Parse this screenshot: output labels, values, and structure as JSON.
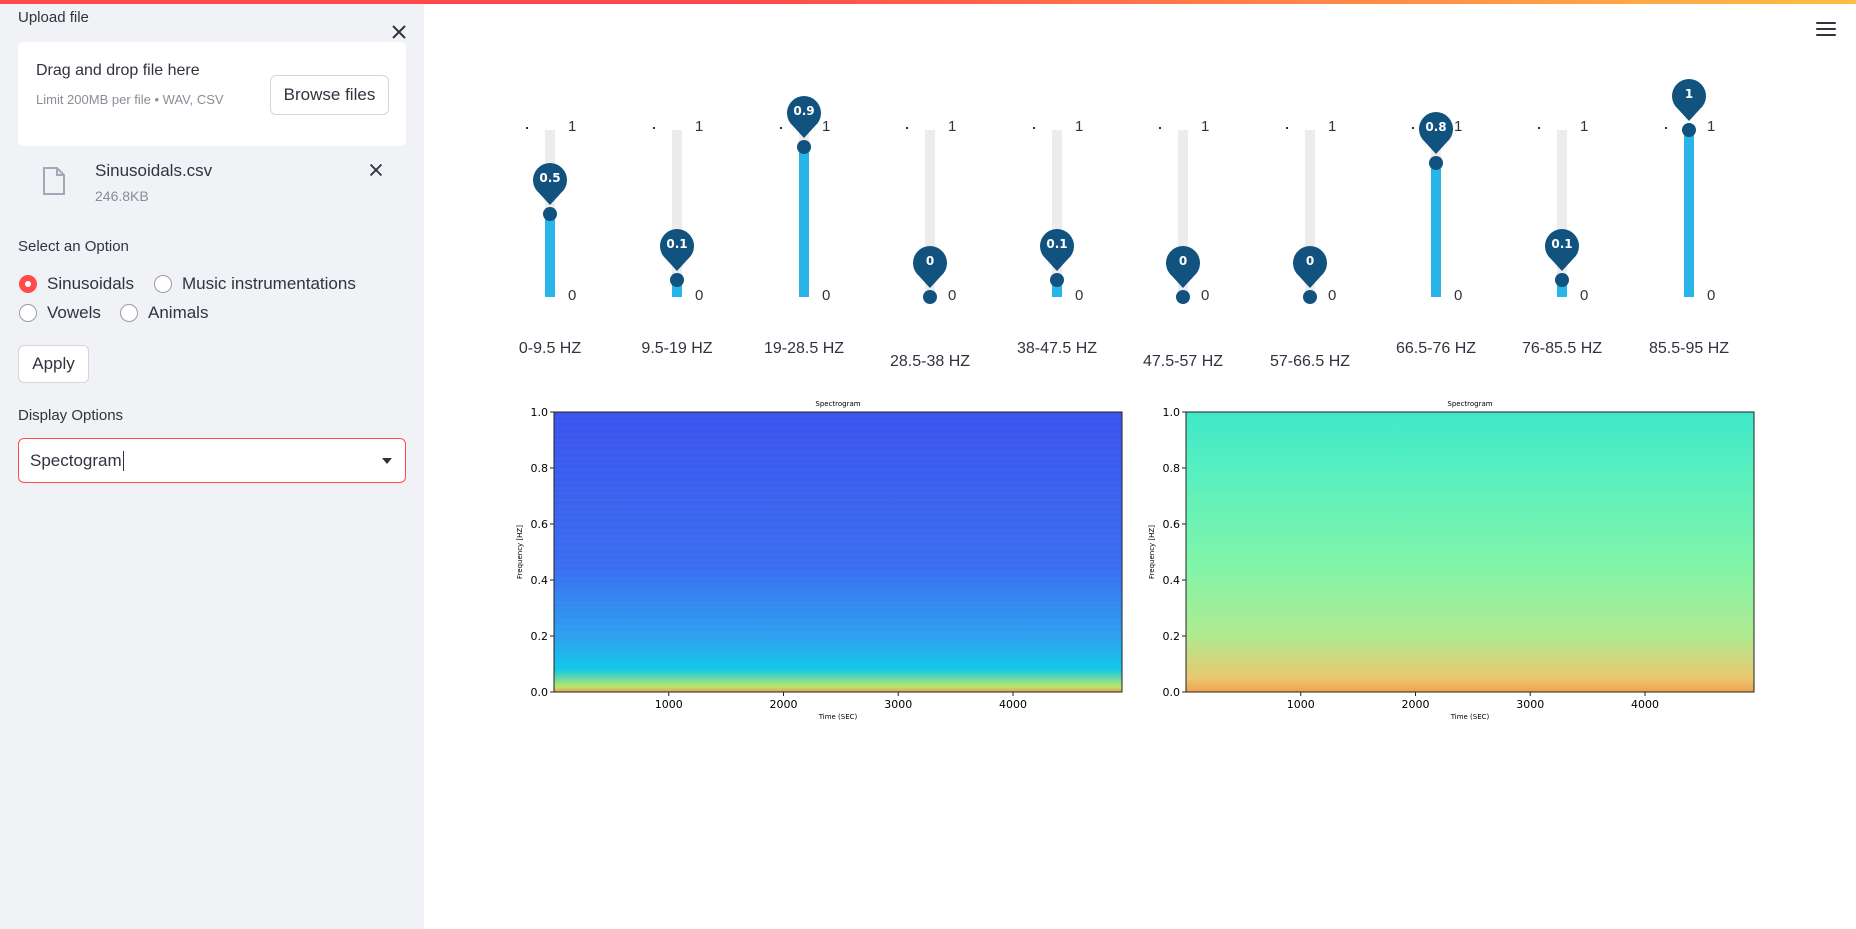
{
  "sidebar": {
    "upload_label": "Upload file",
    "dropzone_title": "Drag and drop file here",
    "dropzone_sub": "Limit 200MB per file • WAV, CSV",
    "browse_label": "Browse files",
    "file_name": "Sinusoidals.csv",
    "file_size": "246.8KB",
    "select_option_label": "Select an Option",
    "options": [
      "Sinusoidals",
      "Music instrumentations",
      "Vowels",
      "Animals"
    ],
    "selected_option": "Sinusoidals",
    "apply_label": "Apply",
    "display_options_label": "Display Options",
    "display_value": "Spectogram"
  },
  "sliders": [
    {
      "label": "0-9.5 HZ",
      "value": "0.5",
      "max": "1",
      "min": "0"
    },
    {
      "label": "9.5-19 HZ",
      "value": "0.1",
      "max": "1",
      "min": "0"
    },
    {
      "label": "19-28.5 HZ",
      "value": "0.9",
      "max": "1",
      "min": "0"
    },
    {
      "label": "28.5-38 HZ",
      "value": "0",
      "max": "1",
      "min": "0"
    },
    {
      "label": "38-47.5 HZ",
      "value": "0.1",
      "max": "1",
      "min": "0"
    },
    {
      "label": "47.5-57 HZ",
      "value": "0",
      "max": "1",
      "min": "0"
    },
    {
      "label": "57-66.5 HZ",
      "value": "0",
      "max": "1",
      "min": "0"
    },
    {
      "label": "66.5-76 HZ",
      "value": "0.8",
      "max": "1",
      "min": "0"
    },
    {
      "label": "76-85.5 HZ",
      "value": "0.1",
      "max": "1",
      "min": "0"
    },
    {
      "label": "85.5-95 HZ",
      "value": "1",
      "max": "1",
      "min": "0"
    }
  ],
  "colors": {
    "accent": "#ff4b4b",
    "slider_fill": "#29b5e8",
    "slider_knob": "#12527f"
  },
  "chart_data": [
    {
      "type": "heatmap",
      "title": "Spectrogram",
      "xlabel": "Time (SEC)",
      "ylabel": "Frequency [HZ]",
      "xticks": [
        "1000",
        "2000",
        "3000",
        "4000"
      ],
      "yticks": [
        "0.0",
        "0.2",
        "0.4",
        "0.6",
        "0.8",
        "1.0"
      ],
      "xlim": [
        0,
        4950
      ],
      "ylim": [
        0.0,
        1.0
      ],
      "colormap_stops": [
        "#e8a05a",
        "#b8e86a",
        "#14c8e8",
        "#2ea0f0",
        "#3b6ef0",
        "#3b54ee"
      ]
    },
    {
      "type": "heatmap",
      "title": "Spectrogram",
      "xlabel": "Time (SEC)",
      "ylabel": "Frequency [HZ]",
      "xticks": [
        "1000",
        "2000",
        "3000",
        "4000"
      ],
      "yticks": [
        "0.0",
        "0.2",
        "0.4",
        "0.6",
        "0.8",
        "1.0"
      ],
      "xlim": [
        0,
        4950
      ],
      "ylim": [
        0.0,
        1.0
      ],
      "colormap_stops": [
        "#f0a050",
        "#e8c870",
        "#b0ea90",
        "#80f5a8",
        "#55efc0",
        "#3ee8c8"
      ]
    }
  ]
}
